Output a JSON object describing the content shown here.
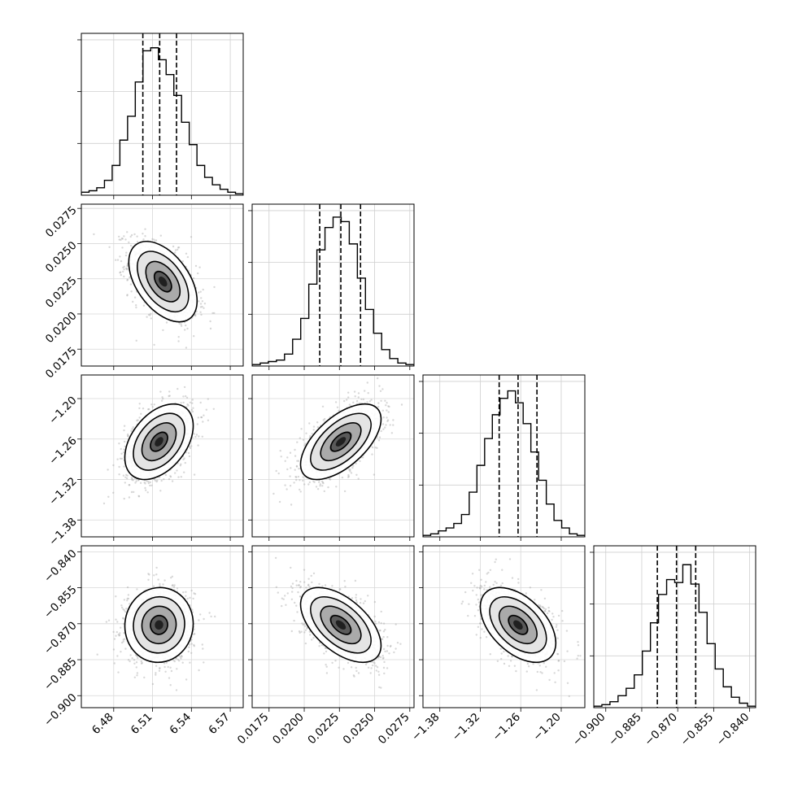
{
  "chart_data": {
    "type": "corner",
    "parameters": [
      {
        "range": [
          6.455,
          6.58
        ],
        "ticks": [
          "6.48",
          "6.51",
          "6.54",
          "6.57"
        ],
        "tick_values": [
          6.48,
          6.51,
          6.54,
          6.57
        ],
        "quantiles": [
          6.5025,
          6.5155,
          6.5285
        ],
        "hist": [
          0.02,
          0.03,
          0.05,
          0.1,
          0.2,
          0.37,
          0.53,
          0.76,
          0.97,
          0.99,
          0.91,
          0.81,
          0.67,
          0.49,
          0.34,
          0.2,
          0.12,
          0.07,
          0.04,
          0.02,
          0.01
        ]
      },
      {
        "range": [
          0.0163,
          0.0278
        ],
        "ticks": [
          "0.0175",
          "0.0200",
          "0.0225",
          "0.0250",
          "0.0275"
        ],
        "tick_values": [
          0.0175,
          0.02,
          0.0225,
          0.025,
          0.0275
        ],
        "quantiles": [
          0.0211,
          0.0226,
          0.024
        ],
        "hist": [
          0.01,
          0.02,
          0.03,
          0.04,
          0.08,
          0.18,
          0.32,
          0.55,
          0.78,
          0.93,
          1.0,
          0.97,
          0.82,
          0.59,
          0.38,
          0.22,
          0.11,
          0.05,
          0.02,
          0.01
        ]
      },
      {
        "range": [
          -1.405,
          -1.165
        ],
        "ticks": [
          "−1.38",
          "−1.32",
          "−1.26",
          "−1.20"
        ],
        "tick_values": [
          -1.38,
          -1.32,
          -1.26,
          -1.2
        ],
        "quantiles": [
          -1.292,
          -1.264,
          -1.236
        ],
        "hist": [
          0.01,
          0.02,
          0.04,
          0.06,
          0.09,
          0.15,
          0.3,
          0.48,
          0.66,
          0.82,
          0.93,
          0.98,
          0.9,
          0.76,
          0.57,
          0.38,
          0.22,
          0.11,
          0.06,
          0.02,
          0.01
        ]
      },
      {
        "range": [
          -0.905,
          -0.8375
        ],
        "ticks": [
          "−0.900",
          "−0.885",
          "−0.870",
          "−0.855",
          "−0.840"
        ],
        "tick_values": [
          -0.9,
          -0.885,
          -0.87,
          -0.855,
          -0.84
        ],
        "quantiles": [
          -0.8785,
          -0.8705,
          -0.8625
        ],
        "hist": [
          0.01,
          0.02,
          0.04,
          0.08,
          0.13,
          0.22,
          0.38,
          0.57,
          0.76,
          0.86,
          0.84,
          0.96,
          0.83,
          0.64,
          0.43,
          0.26,
          0.14,
          0.07,
          0.03,
          0.01
        ]
      }
    ],
    "pairs": [
      {
        "x": 0,
        "y": 1,
        "center": [
          6.518,
          0.0223
        ],
        "sigma": [
          0.0132,
          0.00143
        ],
        "rho": -0.48
      },
      {
        "x": 0,
        "y": 2,
        "center": [
          6.515,
          -1.264
        ],
        "sigma": [
          0.0132,
          0.028
        ],
        "rho": 0.42
      },
      {
        "x": 1,
        "y": 2,
        "center": [
          0.0226,
          -1.264
        ],
        "sigma": [
          0.00143,
          0.028
        ],
        "rho": 0.6
      },
      {
        "x": 0,
        "y": 3,
        "center": [
          6.515,
          -0.8705
        ],
        "sigma": [
          0.0132,
          0.0078
        ],
        "rho": 0.03
      },
      {
        "x": 1,
        "y": 3,
        "center": [
          0.0226,
          -0.8705
        ],
        "sigma": [
          0.00143,
          0.0078
        ],
        "rho": -0.55
      },
      {
        "x": 2,
        "y": 3,
        "center": [
          -1.264,
          -0.8705
        ],
        "sigma": [
          0.028,
          0.0078
        ],
        "rho": -0.48
      }
    ],
    "grid": true,
    "contour_levels_sigma": [
      0.5,
      1.0,
      1.5,
      2.0
    ]
  }
}
